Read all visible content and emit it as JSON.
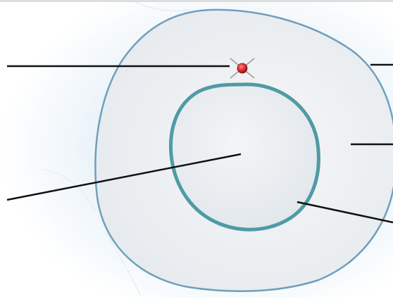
{
  "diagram": {
    "colors": {
      "background": "#ffffff",
      "background_glow": "#cfe3ef",
      "outer_fill": "#f0f2f4",
      "outer_stroke": "#6f9fbd",
      "inner_fill": "#eceff2",
      "inner_stroke": "#4f9ba5",
      "leader": "#111111",
      "marker": "#d42a2a",
      "marker_cross": "#9a9a9a"
    },
    "icons": {
      "marker": "red-dot-with-cross"
    },
    "labels": []
  }
}
